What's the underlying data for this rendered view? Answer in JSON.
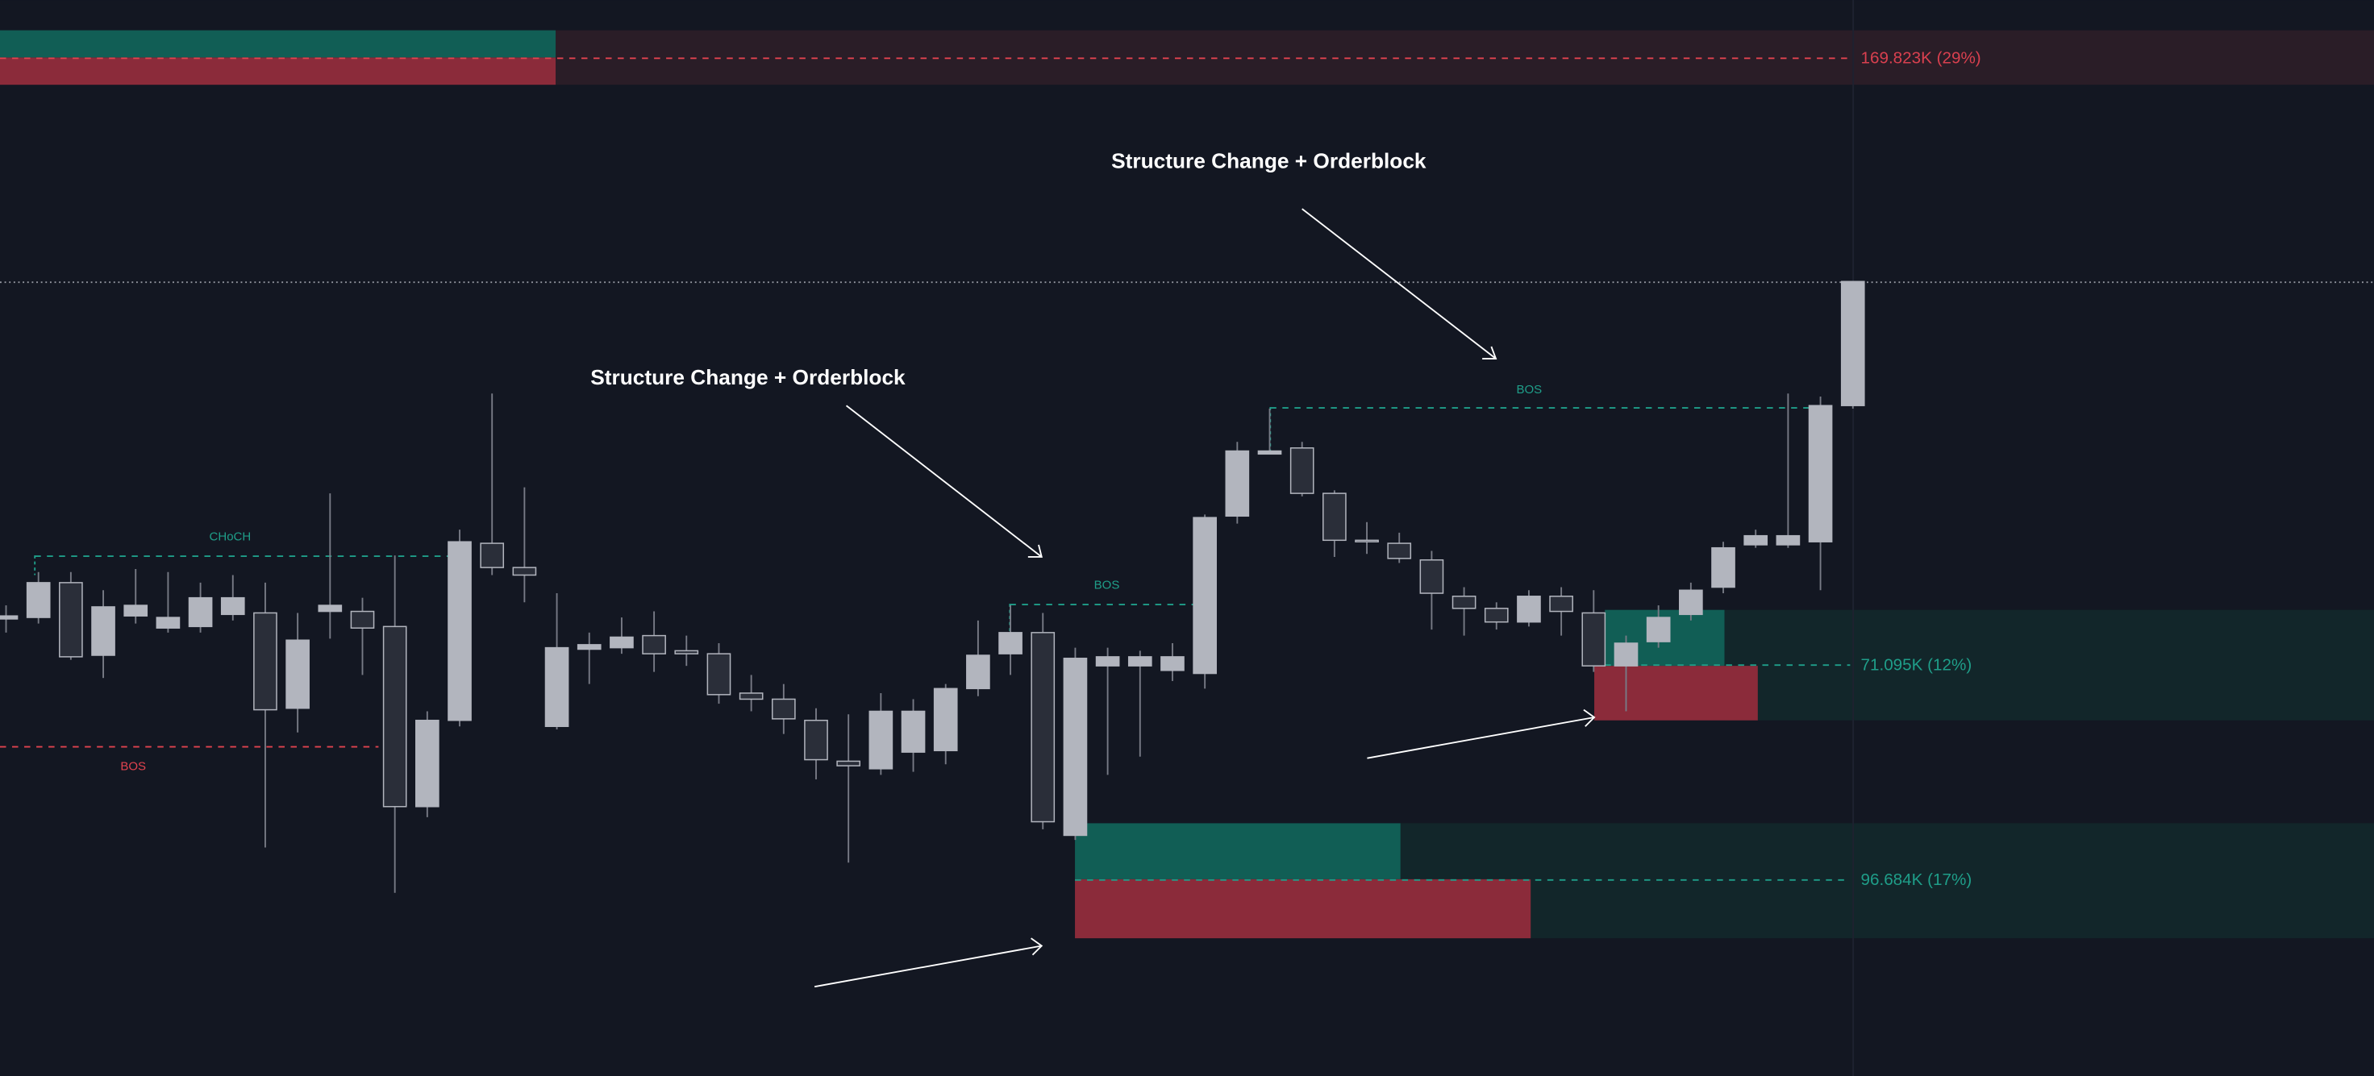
{
  "chart_data": {
    "type": "candlestick",
    "open": [
      302,
      303,
      326,
      278,
      304,
      296,
      297,
      305,
      306,
      243,
      307,
      307,
      297,
      178,
      235,
      352,
      336,
      231,
      282,
      283,
      291,
      281,
      279,
      253,
      249,
      235,
      208,
      203,
      214,
      215,
      256,
      279,
      293,
      159,
      271,
      271,
      268,
      266,
      370,
      411,
      415,
      385,
      354,
      352,
      341,
      317,
      309,
      300,
      317,
      306,
      271,
      287,
      305,
      323,
      351,
      351,
      353,
      443
    ],
    "high": [
      311,
      333,
      333,
      321,
      335,
      333,
      326,
      331,
      326,
      306,
      385,
      316,
      344,
      241,
      361,
      451,
      389,
      319,
      293,
      303,
      307,
      291,
      286,
      265,
      259,
      243,
      239,
      253,
      249,
      259,
      301,
      311,
      306,
      283,
      283,
      281,
      286,
      371,
      419,
      441,
      419,
      387,
      366,
      359,
      347,
      323,
      313,
      321,
      323,
      321,
      291,
      311,
      326,
      353,
      361,
      451,
      449,
      525
    ],
    "low": [
      293,
      299,
      275,
      263,
      299,
      293,
      293,
      301,
      151,
      227,
      289,
      265,
      121,
      171,
      231,
      331,
      313,
      229,
      259,
      279,
      267,
      271,
      246,
      241,
      226,
      196,
      141,
      199,
      201,
      206,
      251,
      265,
      163,
      156,
      199,
      211,
      261,
      256,
      365,
      411,
      383,
      343,
      345,
      339,
      295,
      291,
      295,
      297,
      291,
      267,
      241,
      283,
      301,
      319,
      349,
      349,
      321,
      441
    ],
    "close": [
      304,
      326,
      277,
      310,
      311,
      303,
      316,
      316,
      242,
      288,
      311,
      296,
      178,
      235,
      353,
      336,
      331,
      283,
      285,
      290,
      279,
      279,
      252,
      249,
      236,
      209,
      205,
      241,
      241,
      256,
      278,
      293,
      168,
      276,
      277,
      277,
      277,
      369,
      413,
      413,
      385,
      354,
      353,
      342,
      319,
      309,
      300,
      317,
      307,
      271,
      286,
      303,
      321,
      349,
      357,
      357,
      443,
      525
    ],
    "up_color": "#b2b5be",
    "down_color": "#2a2e39",
    "ylim": [
      0,
      711
    ],
    "annotations": [
      "Structure Change + Orderblock",
      "Structure Change + Orderblock",
      "CHoCH",
      "BOS",
      "BOS",
      "BOS"
    ],
    "zone_labels": [
      "169.823K (29%)",
      "71.095K (12%)",
      "96.684K (17%)"
    ]
  }
}
